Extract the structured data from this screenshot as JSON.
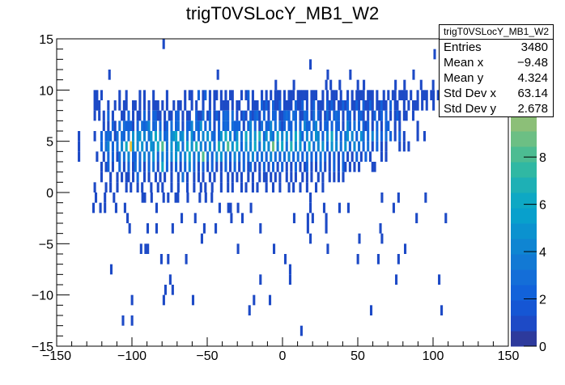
{
  "chart_data": {
    "type": "heatmap",
    "title": "trigT0VSLocY_MB1_W2",
    "xlabel": "",
    "ylabel": "",
    "xlim": [
      -150,
      150
    ],
    "ylim": [
      -15,
      15
    ],
    "zlim": [
      0,
      13
    ],
    "x_ticks": [
      "−150",
      "−100",
      "−50",
      "0",
      "50",
      "100",
      "150"
    ],
    "x_tick_values": [
      -150,
      -100,
      -50,
      0,
      50,
      100,
      150
    ],
    "y_ticks": [
      "−15",
      "−10",
      "−5",
      "0",
      "5",
      "10",
      "15"
    ],
    "y_tick_values": [
      -15,
      -10,
      -5,
      0,
      5,
      10,
      15
    ],
    "z_ticks": [
      "0",
      "2",
      "4",
      "6",
      "8"
    ],
    "z_tick_values": [
      0,
      2,
      4,
      6,
      8
    ],
    "palette": [
      "#2d3a9c",
      "#1d4ac6",
      "#1556d4",
      "#1262da",
      "#146ed8",
      "#1279d4",
      "#0f85d2",
      "#0b92cf",
      "#08a0cc",
      "#0ea8c4",
      "#1eb0b5",
      "#30b8a3",
      "#4cbc92",
      "#6cbf84",
      "#8cbf78",
      "#a8be6e",
      "#c2bc64",
      "#d6ba5a",
      "#ecc23a",
      "#f8e51a"
    ],
    "x_bin_width": 1.5,
    "y_bin_width": 1,
    "dense_rows_x_start": -136,
    "dense_rows_legend": "one char per x bin: '.'=0, 1-9, a=10, b=11, c=12",
    "dense_rows": [
      {
        "y": 9,
        "cells": ".......11.1.......1..1.....1.1...1.....1.......1.11..2.12.1.11.1.1.11...1.12.1...1.1.1.111.1.111.11111.111..1.1.111.1..1.1.1111.111.1..1.1.11.1111.1..1.111.11.1...1.11.."
      },
      {
        "y": 8,
        "cells": ".......111...1..1.1.11..11.1.1.1.111.1.1..1.11.1..1.1..1..1.1..1111.1.11...1.111.2121.2112.1111.2112.1.12.111.2121.11212.1121.21121.11211.2.11..1.1.111.1.1..1"
      },
      {
        "y": 7,
        "cells": ".......1.1.1.2.1...11.2.1.11.2.1.2211.1.11.22.1.11..2113.12.121.232.3.1.121.21231.2.1.22.11232.32.1132.13.21.131.232.1.22.1.221.1.12.12.2.1.121.11..1"
      },
      {
        "y": 6,
        "cells": "...........1.1.21.3.32221.2.3234.23.2.12.3.23.1.224.325.2.3.1.2.232.3222.1.24.2.13.224.3.312.22.3.2.422.34.1.22.2.22.1.42.3.2.212.1.2.1.22..1.1.......1"
      },
      {
        "y": 5,
        "cells": "1......1..2.232.13.32.3.5.45.4.35.6.4.23.456.45.3.52.3.4.5.32.25.6.4.25.3.6.4.5.7.25.43.6.4.5.3.6.52.4.3.54.2.4.6.3.2.35.4.2.53.2.4.3.2.3.2.1.2.1.....1..1"
      },
      {
        "y": 4,
        "cells": "1.........2.34.2.3.4.6.c5.4.5.3.54.6.8.3.5.46.3.6.5.7.4.3.5.3.7.4.8.5.6.2.5.4.6.3.5.4.9.4.6.3.7.4.5.2.6.3.4.5.2.5.4.3.5.2.4.3.2.3.1.2.1.1.....1.1.1"
      },
      {
        "y": 3,
        "cells": "1.......1..1.2.2.13.3.4.22.3.4.3.5.2.4.3.4.5.3.4.6.3.4.8.3.2.4.5.3.2.4.3.2.3.4.2.3.2.4.3.2.3.4.2.3.2.3.2.2.3.2.1.2.1.2.1.1.2.1.2.1....1.1"
      },
      {
        "y": 2,
        "cells": "..........1.12.1..2.1.2.13.2.1.2.3.1.6.2.1.2.1.2.4.2.1.2.1.2.1.1.2.1.2.1.2.12.1.1.2.1.2.1.2.1.1.2.1.12.1.1.2.1.1.2.1.21.1.1.1.....11"
      },
      {
        "y": 1,
        "cells": "..........1...1..1.1.11.1.2..1.1..1.1.1..1..1.3.1..1.1.1..1.1..1..1.1.1.1..1.1..1.11.1.1.1..1.1.1..1.1.1..1.1..1.1.1.1"
      },
      {
        "y": 0,
        "cells": ".......1....1.1..1...1.1..1.1...1..1.1...1..1...1..1..1.1..1...1..1.1...1.1..1.1...1..1..1...1.1..1..1...1..1"
      }
    ],
    "sparse_rows_legend": "x centers of bins with count 1",
    "sparse_rows": [
      {
        "y": 14,
        "x": [
          -79
        ]
      },
      {
        "y": 13,
        "x": [
          101
        ]
      },
      {
        "y": 12,
        "x": [
          18.5,
          108
        ]
      },
      {
        "y": 11,
        "x": [
          -115,
          -43,
          30,
          45,
          87
        ]
      },
      {
        "y": 10,
        "x": [
          -4.5,
          7.5,
          29,
          32,
          38,
          50,
          54,
          75,
          81,
          92,
          100,
          106
        ]
      },
      {
        "y": -1,
        "x": [
          -124,
          -118,
          -112,
          -93,
          -91.5,
          -87,
          -79,
          -76,
          -71,
          -69.5,
          -63,
          -55,
          -51,
          -47,
          18.5,
          66,
          77,
          95
        ]
      },
      {
        "y": -2,
        "x": [
          -125.6,
          -121,
          -118,
          -110.6,
          -104.7,
          -83.7,
          -41.8,
          -36,
          -34.5,
          -29.6,
          -21,
          18.5,
          27.6,
          37.8,
          43.7,
          73.8
        ]
      },
      {
        "y": -3,
        "x": [
          -103,
          -67,
          -58,
          -34,
          -26.7,
          7.7,
          16.8,
          20,
          29,
          89,
          108.4
        ]
      },
      {
        "y": -4,
        "x": [
          -101.6,
          -89.6,
          -83.7,
          -73,
          -52,
          -44.4,
          -14.7,
          16.8,
          29,
          65
        ]
      },
      {
        "y": -5,
        "x": [
          -53.6,
          18.5,
          51,
          66
        ]
      },
      {
        "y": -6,
        "x": [
          -94,
          -91,
          -89.5,
          -29.6,
          -5.7,
          30,
          81.4
        ]
      },
      {
        "y": -7,
        "x": [
          -80.5,
          -76,
          -64,
          1.8,
          50,
          63.6,
          77
        ]
      },
      {
        "y": -8,
        "x": [
          -113.8,
          5
        ]
      },
      {
        "y": -9,
        "x": [
          -74.6,
          -14.7,
          5,
          75.5,
          104
        ]
      },
      {
        "y": -10,
        "x": [
          -77.8,
          -73
        ]
      },
      {
        "y": -11,
        "x": [
          -100,
          -78.9,
          -59.5,
          -19,
          -8.4
        ]
      },
      {
        "y": -12,
        "x": [
          -22,
          58.8,
          105.6
        ]
      },
      {
        "y": -13,
        "x": [
          -106,
          -100
        ]
      },
      {
        "y": -14,
        "x": [
          12.5
        ]
      }
    ]
  },
  "stats": {
    "title": "trigT0VSLocY_MB1_W2",
    "rows": [
      {
        "label": "Entries",
        "value": "3480"
      },
      {
        "label": "Mean x",
        "value": "−9.48"
      },
      {
        "label": "Mean y",
        "value": "4.324"
      },
      {
        "label": "Std Dev x",
        "value": "63.14"
      },
      {
        "label": "Std Dev y",
        "value": "2.678"
      }
    ]
  }
}
